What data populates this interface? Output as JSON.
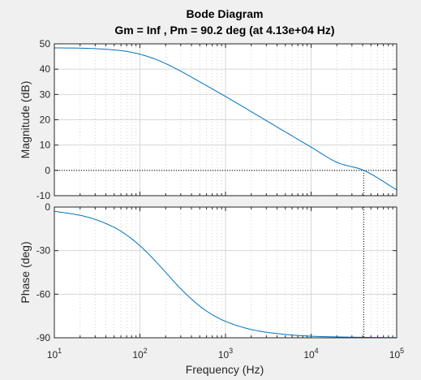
{
  "chart_data": {
    "type": "line",
    "title": "Bode Diagram",
    "subtitle": "Gm = Inf ,  Pm = 90.2 deg (at 4.13e+04 Hz)",
    "xlabel": "Frequency  (Hz)",
    "xscale": "log",
    "xlim": [
      10,
      100000
    ],
    "x_tick_labels": [
      {
        "base": "10",
        "exp": "1"
      },
      {
        "base": "10",
        "exp": "2"
      },
      {
        "base": "10",
        "exp": "3"
      },
      {
        "base": "10",
        "exp": "4"
      },
      {
        "base": "10",
        "exp": "5"
      }
    ],
    "grid": true,
    "gain_crossover_hz": 41300,
    "colors": {
      "curve": "#0072bd",
      "background": "#f0f0f0",
      "axes": "#ffffff"
    },
    "subplots": [
      {
        "ylabel": "Magnitude (dB)",
        "ylim": [
          -10,
          50
        ],
        "yticks": [
          "-10",
          "0",
          "10",
          "20",
          "30",
          "40",
          "50"
        ],
        "reference_line_y": 0,
        "series": [
          {
            "x": [
              10,
              20,
              30,
              50,
              70,
              100,
              150,
              200,
              300,
              500,
              700,
              1000,
              2000,
              5000,
              10000,
              20000,
              41300,
              100000
            ],
            "values": [
              48.4,
              48.3,
              48.1,
              47.6,
              47.0,
              45.9,
              44.0,
              42.2,
              39.2,
              35.0,
              32.2,
              29.2,
              23.2,
              15.2,
              9.2,
              3.2,
              0.0,
              -7.7
            ]
          }
        ]
      },
      {
        "ylabel": "Phase (deg)",
        "ylim": [
          -90,
          0
        ],
        "yticks": [
          "-90",
          "-60",
          "-30",
          "0"
        ],
        "series": [
          {
            "x": [
              10,
              20,
              30,
              50,
              70,
              100,
              150,
              200,
              300,
              500,
              700,
              1000,
              2000,
              5000,
              10000,
              20000,
              41300,
              100000
            ],
            "values": [
              -2.9,
              -5.7,
              -8.5,
              -14.0,
              -19.3,
              -26.6,
              -36.9,
              -45.0,
              -56.3,
              -68.2,
              -74.1,
              -78.7,
              -84.3,
              -87.7,
              -88.9,
              -89.4,
              -89.7,
              -89.9
            ]
          }
        ]
      }
    ]
  }
}
